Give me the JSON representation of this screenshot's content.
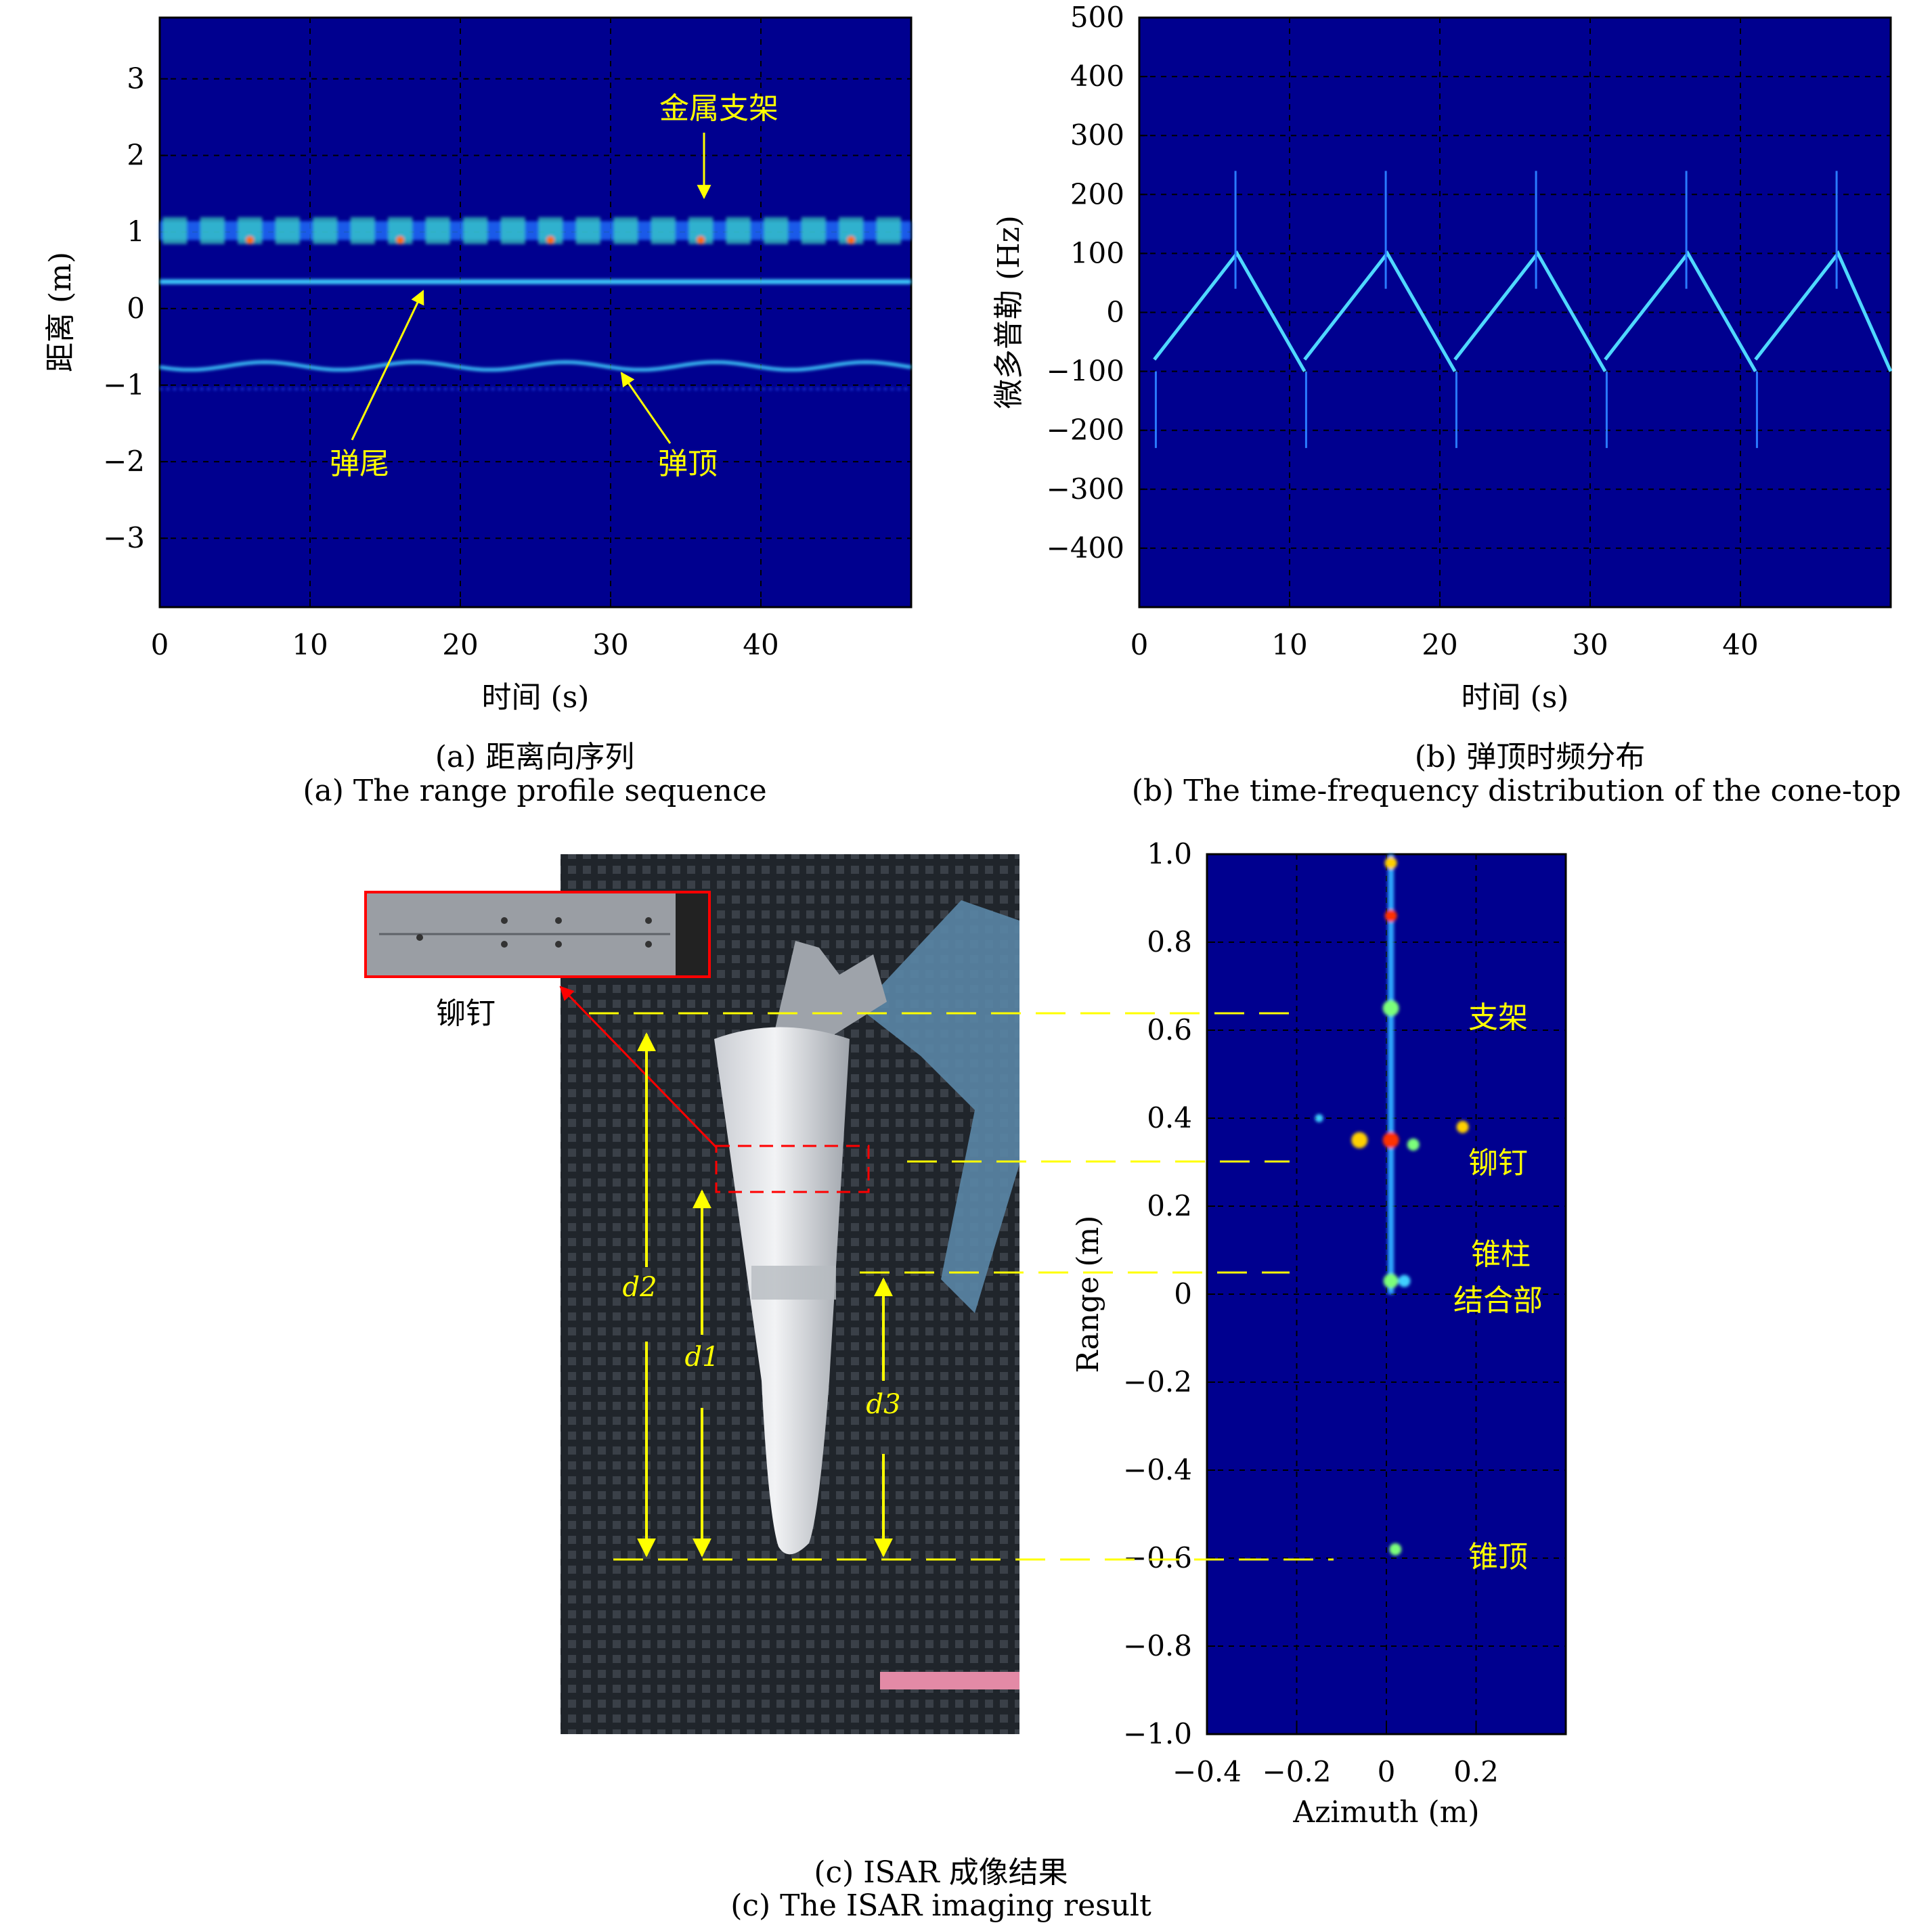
{
  "panel_a": {
    "ylabel": "距离 (m)",
    "xlabel": "时间 (s)",
    "yticks": [
      "3",
      "2",
      "1",
      "0",
      "−1",
      "−2",
      "−3"
    ],
    "xticks": [
      "0",
      "10",
      "20",
      "30",
      "40"
    ],
    "annotations": {
      "bracket": "金属支架",
      "tail": "弹尾",
      "top": "弹顶"
    },
    "caption_cn": "(a) 距离向序列",
    "caption_en": "(a) The range profile sequence"
  },
  "panel_b": {
    "ylabel": "微多普勒 (Hz)",
    "xlabel": "时间 (s)",
    "yticks": [
      "500",
      "400",
      "300",
      "200",
      "100",
      "0",
      "−100",
      "−200",
      "−300",
      "−400"
    ],
    "xticks": [
      "0",
      "10",
      "20",
      "30",
      "40"
    ],
    "caption_cn": "(b) 弹顶时频分布",
    "caption_en": "(b) The time-frequency distribution of the cone-top"
  },
  "panel_c": {
    "rivet_label": "铆钉",
    "distances": [
      "d2",
      "d1",
      "d3"
    ],
    "ylabel": "Range (m)",
    "xlabel": "Azimuth (m)",
    "yticks": [
      "1.0",
      "0.8",
      "0.6",
      "0.4",
      "0.2",
      "0",
      "−0.2",
      "−0.4",
      "−0.6",
      "−0.8",
      "−1.0"
    ],
    "xticks": [
      "−0.4",
      "−0.2",
      "0",
      "0.2"
    ],
    "annotations": {
      "bracket": "支架",
      "rivet": "铆钉",
      "junction_1": "锥柱",
      "junction_2": "结合部",
      "cone_top": "锥顶"
    },
    "caption_cn": "(c) ISAR 成像结果",
    "caption_en": "(c) The ISAR imaging result"
  },
  "colors": {
    "background": "#00008f",
    "grid": "#000000",
    "annotation": "#ffff00",
    "highlight": "#ff0000"
  },
  "chart_data": [
    {
      "type": "heatmap",
      "xlabel": "时间 (s)",
      "ylabel": "距离 (m)",
      "xlim": [
        0,
        50
      ],
      "ylim": [
        -3.9,
        3.8
      ],
      "xticks": [
        0,
        10,
        20,
        30,
        40
      ],
      "yticks": [
        3,
        2,
        1,
        0,
        -1,
        -2,
        -3
      ],
      "grid": true,
      "series": [
        {
          "name": "金属支架",
          "range_m": 1.0
        },
        {
          "name": "弹尾",
          "range_m": 0.35
        },
        {
          "name": "弹顶",
          "range_min_m": -0.8,
          "range_max_m": -0.7,
          "period_s": 10
        }
      ]
    },
    {
      "type": "heatmap",
      "xlabel": "时间 (s)",
      "ylabel": "微多普勒 (Hz)",
      "xlim": [
        0,
        50
      ],
      "ylim": [
        -500,
        500
      ],
      "xticks": [
        0,
        10,
        20,
        30,
        40
      ],
      "yticks": [
        500,
        400,
        300,
        200,
        100,
        0,
        -100,
        -200,
        -300,
        -400
      ],
      "grid": true,
      "series": [
        {
          "period_s": 10,
          "doppler_max_hz": 100,
          "doppler_min_hz": -100
        }
      ]
    },
    {
      "type": "heatmap",
      "xlabel": "Azimuth (m)",
      "ylabel": "Range (m)",
      "xlim": [
        -0.4,
        0.4
      ],
      "ylim": [
        -1.0,
        1.0
      ],
      "xticks": [
        -0.4,
        -0.2,
        0,
        0.2
      ],
      "yticks": [
        1.0,
        0.8,
        0.6,
        0.4,
        0.2,
        0,
        -0.2,
        -0.4,
        -0.6,
        -0.8,
        -1.0
      ],
      "grid": true,
      "series": [
        {
          "name": "支架",
          "range_m": 0.65
        },
        {
          "name": "铆钉",
          "range_m": 0.35
        },
        {
          "name": "锥柱结合部",
          "range_m": 0.03
        },
        {
          "name": "锥顶",
          "range_m": -0.58
        }
      ]
    }
  ]
}
